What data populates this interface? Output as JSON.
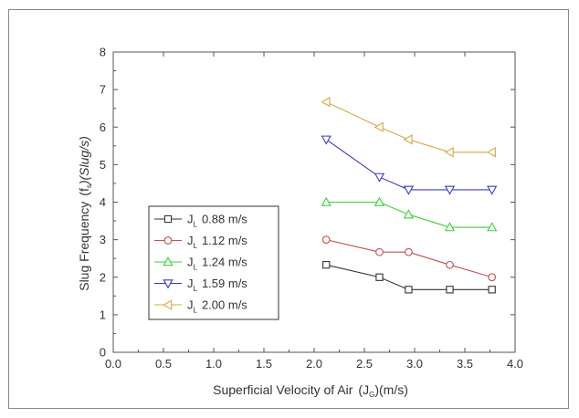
{
  "chart_data": {
    "type": "line",
    "xlabel": "Superficial Velocity of Air",
    "xlabel_symbol": "(J",
    "xlabel_sub": "G",
    "xlabel_unit": ")(m/s)",
    "ylabel_prefix": "Slug Frequency",
    "ylabel_symbol": "(f",
    "ylabel_sub": "s",
    "ylabel_unit": ")(Slug/s)",
    "xlim": [
      0.0,
      4.0
    ],
    "ylim": [
      0,
      8
    ],
    "xticks": [
      "0.0",
      "0.5",
      "1.0",
      "1.5",
      "2.0",
      "2.5",
      "3.0",
      "3.5",
      "4.0"
    ],
    "yticks": [
      "0",
      "1",
      "2",
      "3",
      "4",
      "5",
      "6",
      "7",
      "8"
    ],
    "grid": false,
    "legend_position": "lower-left",
    "x": [
      2.12,
      2.65,
      2.94,
      3.35,
      3.77
    ],
    "series": [
      {
        "name_symbol": "J",
        "name_sub": "L",
        "name_value": "0.88 m/s",
        "marker": "square",
        "color": "#333333",
        "values": [
          2.33,
          2.0,
          1.67,
          1.67,
          1.67
        ]
      },
      {
        "name_symbol": "J",
        "name_sub": "L",
        "name_value": "1.12 m/s",
        "marker": "circle",
        "color": "#c0504d",
        "values": [
          3.0,
          2.67,
          2.67,
          2.33,
          2.0
        ]
      },
      {
        "name_symbol": "J",
        "name_sub": "L",
        "name_value": "1.24 m/s",
        "marker": "triangle-up",
        "color": "#3ecf3e",
        "values": [
          4.0,
          4.0,
          3.67,
          3.33,
          3.33
        ]
      },
      {
        "name_symbol": "J",
        "name_sub": "L",
        "name_value": "1.59 m/s",
        "marker": "triangle-down",
        "color": "#3c3cb8",
        "values": [
          5.67,
          4.67,
          4.33,
          4.33,
          4.33
        ]
      },
      {
        "name_symbol": "J",
        "name_sub": "L",
        "name_value": "2.00 m/s",
        "marker": "triangle-left",
        "color": "#d6a84a",
        "values": [
          6.67,
          6.0,
          5.67,
          5.33,
          5.33
        ]
      }
    ]
  }
}
